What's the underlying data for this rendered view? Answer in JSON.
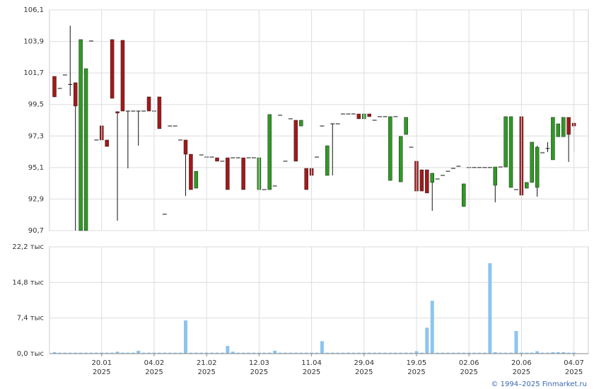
{
  "chart_data": [
    {
      "type": "candlestick",
      "open": [
        101.46,
        100.62,
        101.56,
        100.9,
        101.02,
        90.7,
        90.7,
        103.93,
        97.02,
        98.01,
        97.02,
        104.03,
        99.0,
        103.98,
        99.04,
        99.04,
        99.04,
        99.04,
        100.03,
        99.04,
        100.03,
        91.84,
        98.0,
        98.0,
        97.02,
        97.02,
        96.03,
        93.66,
        95.98,
        95.83,
        95.83,
        95.78,
        95.54,
        95.78,
        95.78,
        95.78,
        95.78,
        95.78,
        95.78,
        93.56,
        93.56,
        93.56,
        93.81,
        98.75,
        95.54,
        98.5,
        98.4,
        98.0,
        95.04,
        95.04,
        95.83,
        98.0,
        94.55,
        98.15,
        98.15,
        98.84,
        98.84,
        98.84,
        98.84,
        98.5,
        98.84,
        98.4,
        98.65,
        98.65,
        94.2,
        98.65,
        94.1,
        97.41,
        96.52,
        95.54,
        94.94,
        94.94,
        94.06,
        94.3,
        94.55,
        94.84,
        95.04,
        95.19,
        92.38,
        95.1,
        95.1,
        95.1,
        95.1,
        95.1,
        93.86,
        95.14,
        95.14,
        93.71,
        93.56,
        98.65,
        93.66,
        94.06,
        93.71,
        96.13,
        96.43,
        95.64,
        97.25,
        97.25,
        98.6,
        98.2
      ],
      "high": [
        101.46,
        100.62,
        101.56,
        105.0,
        101.02,
        104.03,
        102.0,
        103.93,
        97.02,
        98.01,
        97.02,
        104.03,
        99.0,
        103.98,
        99.04,
        99.04,
        99.04,
        99.04,
        100.03,
        99.04,
        100.03,
        91.84,
        98.0,
        98.0,
        97.02,
        97.02,
        96.03,
        94.84,
        95.98,
        95.83,
        95.83,
        95.78,
        95.54,
        95.78,
        95.78,
        95.78,
        95.78,
        95.78,
        95.78,
        95.78,
        93.56,
        98.8,
        93.81,
        98.75,
        95.54,
        98.5,
        98.4,
        98.4,
        95.04,
        95.04,
        95.83,
        98.0,
        96.62,
        98.15,
        98.15,
        98.84,
        98.84,
        98.84,
        98.84,
        98.84,
        98.84,
        98.4,
        98.65,
        98.65,
        98.65,
        98.65,
        97.27,
        98.6,
        96.52,
        95.54,
        94.94,
        94.94,
        94.7,
        94.3,
        94.55,
        94.84,
        95.04,
        95.19,
        93.96,
        95.1,
        95.1,
        95.1,
        95.1,
        95.1,
        95.14,
        95.14,
        98.65,
        98.65,
        93.56,
        98.65,
        94.06,
        96.87,
        96.62,
        96.13,
        96.87,
        98.6,
        98.15,
        98.6,
        98.6,
        98.2
      ],
      "low": [
        100.03,
        100.62,
        101.56,
        100.1,
        90.7,
        90.7,
        90.7,
        103.93,
        97.02,
        97.02,
        96.57,
        99.93,
        91.39,
        99.04,
        95.04,
        99.04,
        96.62,
        99.04,
        99.04,
        99.04,
        97.81,
        91.84,
        98.0,
        98.0,
        97.02,
        93.12,
        93.56,
        93.66,
        95.98,
        95.83,
        95.83,
        95.54,
        95.54,
        93.56,
        95.78,
        95.78,
        93.56,
        95.78,
        95.78,
        93.56,
        93.56,
        93.56,
        93.81,
        98.75,
        95.54,
        98.5,
        95.54,
        98.0,
        93.56,
        94.55,
        95.83,
        98.0,
        94.55,
        94.55,
        98.15,
        98.84,
        98.84,
        98.84,
        98.5,
        98.5,
        98.65,
        98.4,
        98.65,
        98.65,
        94.2,
        98.65,
        94.1,
        97.41,
        96.52,
        93.46,
        93.46,
        93.32,
        92.08,
        94.3,
        94.55,
        94.84,
        95.04,
        95.19,
        92.38,
        95.1,
        95.1,
        95.1,
        95.1,
        95.1,
        92.67,
        95.14,
        95.14,
        93.71,
        93.56,
        93.17,
        93.66,
        94.06,
        93.07,
        96.13,
        96.18,
        95.64,
        97.25,
        97.25,
        95.49,
        96.18
      ],
      "close": [
        100.03,
        100.62,
        101.56,
        100.9,
        99.39,
        104.03,
        102.0,
        103.93,
        97.02,
        97.02,
        96.57,
        99.93,
        98.9,
        99.04,
        99.04,
        99.04,
        99.04,
        99.04,
        99.04,
        99.04,
        97.81,
        91.84,
        98.0,
        98.0,
        97.02,
        96.03,
        93.56,
        94.84,
        95.98,
        95.83,
        95.83,
        95.54,
        95.54,
        93.56,
        95.78,
        95.78,
        93.56,
        95.78,
        95.78,
        95.78,
        93.56,
        98.8,
        93.81,
        98.75,
        95.54,
        98.5,
        95.54,
        98.4,
        93.56,
        94.55,
        95.83,
        98.0,
        96.62,
        98.15,
        98.15,
        98.84,
        98.84,
        98.84,
        98.5,
        98.84,
        98.65,
        98.4,
        98.65,
        98.65,
        98.65,
        98.65,
        97.27,
        98.6,
        96.52,
        93.46,
        93.46,
        93.32,
        94.7,
        94.3,
        94.55,
        94.84,
        95.04,
        95.19,
        93.96,
        95.1,
        95.1,
        95.1,
        95.1,
        95.1,
        95.14,
        95.14,
        98.65,
        98.65,
        93.56,
        93.17,
        94.06,
        96.87,
        96.52,
        96.13,
        96.43,
        98.6,
        98.15,
        98.6,
        97.41,
        98.0
      ],
      "up_color": "#2e9a23",
      "down_color": "#a3191a",
      "ylim": [
        90.7,
        106.1
      ],
      "yticks": [
        {
          "value": 90.7,
          "label": "90,7"
        },
        {
          "value": 92.9,
          "label": "92,9"
        },
        {
          "value": 95.1,
          "label": "95,1"
        },
        {
          "value": 97.3,
          "label": "97,3"
        },
        {
          "value": 99.5,
          "label": "99,5"
        },
        {
          "value": 101.7,
          "label": "101,7"
        },
        {
          "value": 103.9,
          "label": "103,9"
        },
        {
          "value": 106.1,
          "label": "106,1"
        }
      ],
      "grid": true
    },
    {
      "type": "bar",
      "values": [
        0.3,
        0.2,
        0.2,
        0.2,
        0.2,
        0.2,
        0.2,
        0.2,
        0.2,
        0.2,
        0.2,
        0.2,
        0.4,
        0.2,
        0.2,
        0.2,
        0.6,
        0.2,
        0.2,
        0.2,
        0.2,
        0.2,
        0.2,
        0.2,
        0.2,
        6.9,
        0.2,
        0.2,
        0.2,
        0.2,
        0.2,
        0.2,
        0.2,
        1.6,
        0.4,
        0.2,
        0.2,
        0.2,
        0.2,
        0.2,
        0.2,
        0.2,
        0.6,
        0.2,
        0.2,
        0.2,
        0.2,
        0.2,
        0.2,
        0.2,
        0.2,
        2.6,
        0.2,
        0.2,
        0.2,
        0.2,
        0.2,
        0.2,
        0.2,
        0.2,
        0.2,
        0.2,
        0.2,
        0.2,
        0.2,
        0.2,
        0.2,
        0.2,
        0.2,
        0.5,
        0.2,
        5.4,
        11.0,
        0.2,
        0.2,
        0.2,
        0.2,
        0.2,
        0.2,
        0.2,
        0.2,
        0.2,
        0.2,
        18.8,
        0.3,
        0.2,
        0.2,
        0.2,
        4.7,
        0.2,
        0.2,
        0.2,
        0.5,
        0.2,
        0.2,
        0.3,
        0.3,
        0.3,
        0.2,
        0.2
      ],
      "categories": [
        null,
        null,
        null,
        null,
        null,
        null,
        null,
        null,
        null,
        [
          "20.01",
          "2025"
        ],
        null,
        null,
        null,
        null,
        null,
        null,
        null,
        null,
        null,
        [
          "04.02",
          "2025"
        ],
        null,
        null,
        null,
        null,
        null,
        null,
        null,
        null,
        null,
        [
          "21.02",
          "2025"
        ],
        null,
        null,
        null,
        null,
        null,
        null,
        null,
        null,
        null,
        [
          "12.03",
          "2025"
        ],
        null,
        null,
        null,
        null,
        null,
        null,
        null,
        null,
        null,
        [
          "11.04",
          "2025"
        ],
        null,
        null,
        null,
        null,
        null,
        null,
        null,
        null,
        null,
        [
          "29.04",
          "2025"
        ],
        null,
        null,
        null,
        null,
        null,
        null,
        null,
        null,
        null,
        [
          "19.05",
          "2025"
        ],
        null,
        null,
        null,
        null,
        null,
        null,
        null,
        null,
        null,
        [
          "02.06",
          "2025"
        ],
        null,
        null,
        null,
        null,
        null,
        null,
        null,
        null,
        null,
        [
          "20.06",
          "2025"
        ],
        null,
        null,
        null,
        null,
        null,
        null,
        null,
        null,
        null,
        [
          "04.07",
          "2025"
        ]
      ],
      "color": "#8cc4ee",
      "ylim": [
        0,
        22.2
      ],
      "yticks": [
        {
          "value": 0,
          "label": "0,0 тыс"
        },
        {
          "value": 7.4,
          "label": "7,4 тыс"
        },
        {
          "value": 14.8,
          "label": "14,8 тыс"
        },
        {
          "value": 22.2,
          "label": "22,2 тыс"
        }
      ],
      "grid": true
    }
  ],
  "footer": "© 1994–2025 Finmarket.ru"
}
